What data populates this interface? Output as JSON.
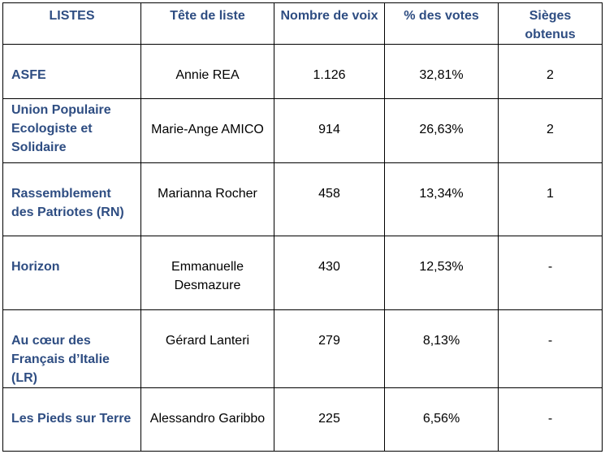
{
  "table": {
    "headers": [
      "LISTES",
      "Tête de liste",
      "Nombre de voix",
      "% des votes",
      "Sièges obtenus"
    ],
    "rows": [
      {
        "liste": "ASFE",
        "tete": "Annie REA",
        "voix": "1.126",
        "pct": "32,81%",
        "sieges": "2"
      },
      {
        "liste": "Union Populaire Ecologiste et Solidaire",
        "tete": "Marie-Ange AMICO",
        "voix": "914",
        "pct": "26,63%",
        "sieges": "2"
      },
      {
        "liste": "Rassemblement des Patriotes (RN)",
        "tete": "Marianna Rocher",
        "voix": "458",
        "pct": "13,34%",
        "sieges": "1"
      },
      {
        "liste": "Horizon",
        "tete": "Emmanuelle Desmazure",
        "voix": "430",
        "pct": "12,53%",
        "sieges": "-"
      },
      {
        "liste": "Au cœur des Français d’Italie (LR)",
        "tete": "Gérard Lanteri",
        "voix": "279",
        "pct": "8,13%",
        "sieges": "-"
      },
      {
        "liste": "Les Pieds sur Terre",
        "tete": "Alessandro Garibbo",
        "voix": "225",
        "pct": "6,56%",
        "sieges": "-"
      }
    ]
  }
}
